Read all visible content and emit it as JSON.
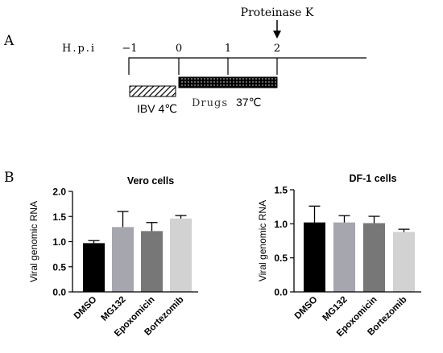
{
  "timeline": {
    "panel_letter": "A",
    "hpi_label": "H.p.i",
    "ticks": [
      "−1",
      "0",
      "1",
      "2"
    ],
    "tick_values": [
      -1,
      0,
      1,
      2
    ],
    "annotation": "Proteinase K",
    "annotation_at": 2,
    "ibv_block": {
      "label": "IBV 4℃",
      "start": -1,
      "end": 0
    },
    "drugs_block": {
      "label_a": "Drugs",
      "label_b": "37℃",
      "start": 0,
      "end": 2
    }
  },
  "panel_b_letter": "B",
  "chart_data": [
    {
      "type": "bar",
      "title": "Vero cells",
      "ylabel": "Viral genomic RNA",
      "ylim": [
        0,
        2.0
      ],
      "yticks": [
        "0.0",
        "0.5",
        "1.0",
        "1.5",
        "2.0"
      ],
      "ytick_values": [
        0,
        0.5,
        1.0,
        1.5,
        2.0
      ],
      "categories": [
        "DMSO",
        "MG132",
        "Epoxomicin",
        "Bortezomib"
      ],
      "values": [
        0.97,
        1.29,
        1.21,
        1.46
      ],
      "errors": [
        0.05,
        0.31,
        0.17,
        0.06
      ],
      "colors": [
        "#000000",
        "#a6a6ae",
        "#777777",
        "#d2d2d2"
      ]
    },
    {
      "type": "bar",
      "title": "DF-1 cells",
      "ylabel": "Viral genomic RNA",
      "ylim": [
        0,
        1.5
      ],
      "yticks": [
        "0.0",
        "0.5",
        "1.0",
        "1.5"
      ],
      "ytick_values": [
        0,
        0.5,
        1.0,
        1.5
      ],
      "categories": [
        "DMSO",
        "MG132",
        "Epoxomicin",
        "Bortezomib"
      ],
      "values": [
        1.02,
        1.02,
        1.01,
        0.88
      ],
      "errors": [
        0.24,
        0.1,
        0.1,
        0.04
      ],
      "colors": [
        "#000000",
        "#a6a6ae",
        "#777777",
        "#d2d2d2"
      ]
    }
  ]
}
